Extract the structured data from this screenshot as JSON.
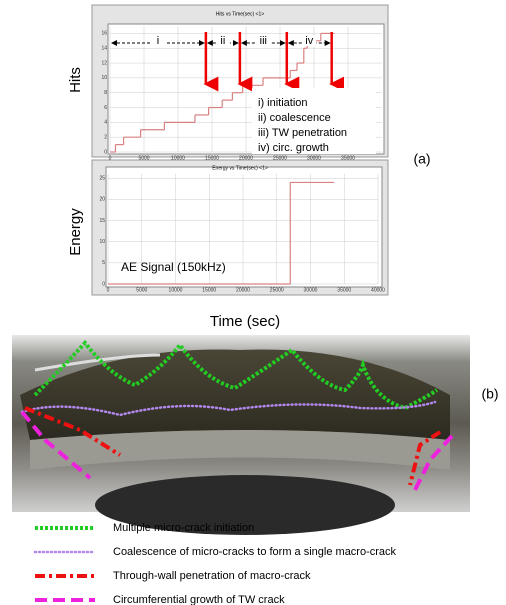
{
  "chart_data": [
    {
      "type": "line",
      "step": true,
      "title": "Hits vs Time(sec) <1>",
      "y_label": "Hits",
      "color": "#d98080",
      "x": [
        0,
        800,
        2000,
        4500,
        8000,
        12500,
        14500,
        16500,
        18000,
        19500,
        22500,
        26500,
        27500,
        28500,
        29000,
        31000,
        33000
      ],
      "values": [
        0,
        1,
        2,
        3,
        4,
        5,
        6,
        7,
        8,
        9,
        10,
        11,
        12,
        14,
        15,
        16,
        16
      ],
      "xlim": [
        0,
        40000
      ],
      "xticks": [
        0,
        5000,
        10000,
        15000,
        20000,
        25000,
        30000,
        35000
      ],
      "ylim": [
        0,
        17
      ],
      "yticks": [
        0,
        2,
        4,
        6,
        8,
        10,
        12,
        14,
        16
      ],
      "grid": true,
      "phase_bounds": [
        0,
        14100,
        19100,
        26000,
        32600
      ],
      "phase_labels": [
        "i",
        "ii",
        "iii",
        "iv"
      ],
      "annotations": [
        "i) initiation",
        "ii) coalescence",
        "iii) TW penetration",
        "iv) circ. growth"
      ]
    },
    {
      "type": "line",
      "step": true,
      "title": "Energy vs Time(sec) <1>",
      "y_label": "Energy",
      "color": "#d98080",
      "x": [
        0,
        27000,
        33500
      ],
      "values": [
        0,
        24,
        24
      ],
      "xlim": [
        0,
        40000
      ],
      "xticks": [
        0,
        5000,
        10000,
        15000,
        20000,
        25000,
        30000,
        35000,
        40000
      ],
      "ylim": [
        0,
        26
      ],
      "yticks": [
        0,
        5,
        10,
        15,
        20,
        25
      ],
      "grid": true,
      "annotations": [
        "AE Signal (150kHz)"
      ]
    }
  ],
  "x_label": "Time (sec)",
  "panel_a": "(a)",
  "panel_b": "(b)",
  "photo_legend": [
    {
      "label": "Multiple micro-crack initiation",
      "color": "#22cc22",
      "style": "dotted"
    },
    {
      "label": "Coalescence of micro-cracks to form a single macro-crack",
      "color": "#b388ee",
      "style": "dots"
    },
    {
      "label": "Through-wall penetration of macro-crack",
      "color": "#ee1111",
      "style": "dash-dot"
    },
    {
      "label": "Circumferential growth of TW crack",
      "color": "#ee22dd",
      "style": "dashed"
    }
  ]
}
